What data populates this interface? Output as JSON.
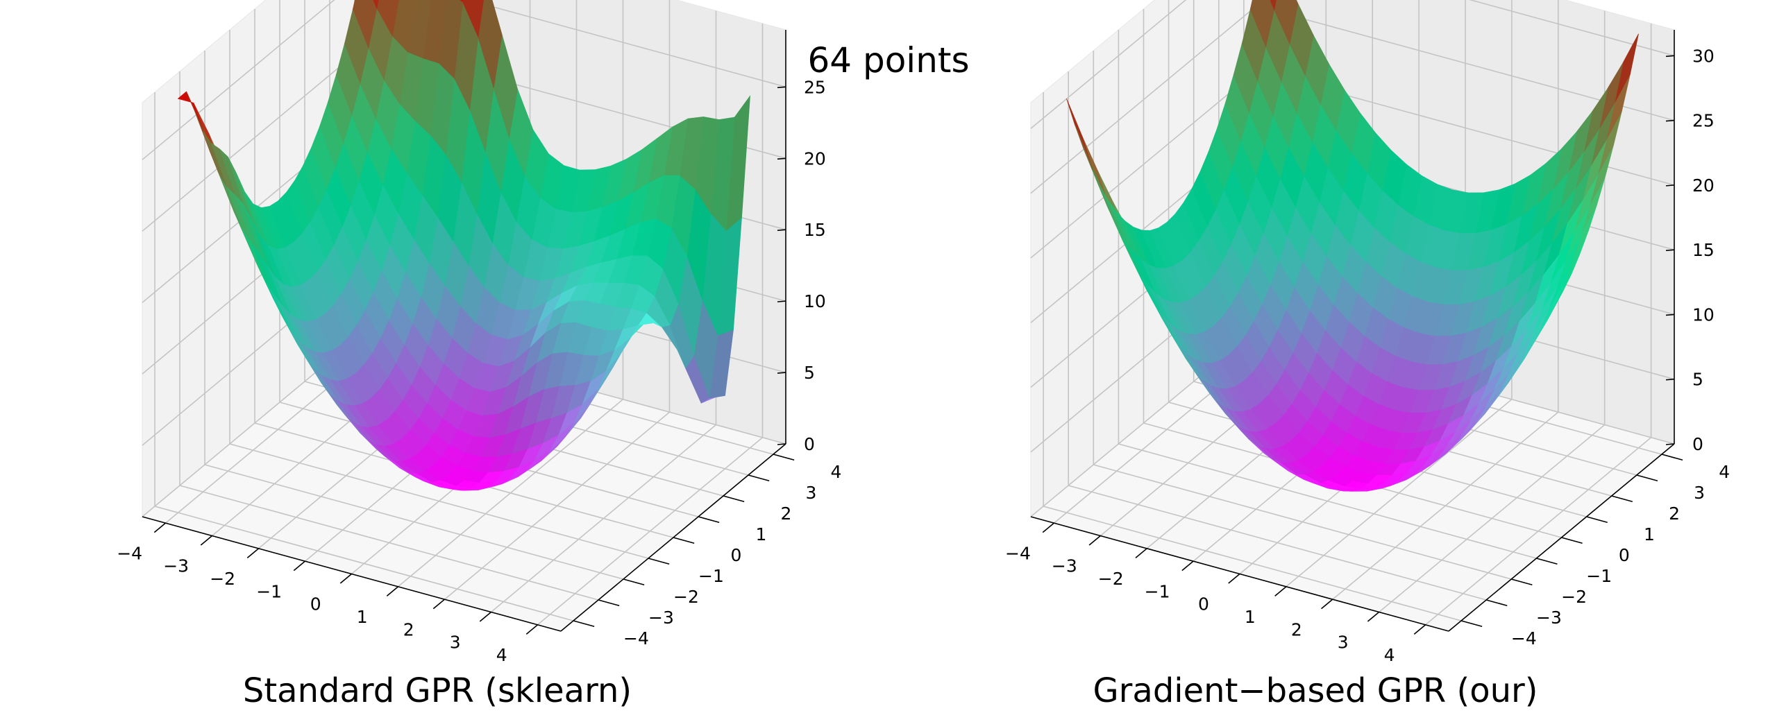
{
  "figure": {
    "suptitle": "64 points"
  },
  "chart_data": [
    {
      "type": "surface3d",
      "title": "Standard GPR (sklearn)",
      "colormap": "rainbow",
      "x": {
        "range": [
          -4.5,
          4.5
        ],
        "ticks": [
          -4,
          -3,
          -2,
          -1,
          0,
          1,
          2,
          3,
          4
        ]
      },
      "y": {
        "range": [
          -4.5,
          4.5
        ],
        "ticks": [
          -4,
          -3,
          -2,
          -1,
          0,
          1,
          2,
          3,
          4
        ]
      },
      "z": {
        "range": [
          0,
          29
        ],
        "ticks": [
          0,
          5,
          10,
          15,
          20,
          25
        ]
      },
      "grid": true,
      "surface": {
        "grid_n": 24,
        "base": "x^2 + y^2",
        "features": [
          {
            "kind": "bump",
            "x": -2.0,
            "y": 4.0,
            "height": 10,
            "width": 1.0
          },
          {
            "kind": "bump",
            "x": -4.0,
            "y": -2.0,
            "height": 2,
            "width": 0.7
          },
          {
            "kind": "dip",
            "x": 4.0,
            "y": 3.0,
            "depth": 20,
            "width": 1.0
          },
          {
            "kind": "dip",
            "x": 0.0,
            "y": -4.5,
            "depth": 8,
            "width": 1.2
          },
          {
            "kind": "ridge",
            "x": 4.5,
            "y": 0.5,
            "height": 6,
            "width": 1.3
          },
          {
            "kind": "bump",
            "x": 1.0,
            "y": 2.0,
            "height": 4,
            "width": 1.0
          }
        ],
        "zmin": 0,
        "zmax": 29
      }
    },
    {
      "type": "surface3d",
      "title": "Gradient−based GPR (our)",
      "colormap": "rainbow",
      "x": {
        "range": [
          -4.5,
          4.5
        ],
        "ticks": [
          -4,
          -3,
          -2,
          -1,
          0,
          1,
          2,
          3,
          4
        ]
      },
      "y": {
        "range": [
          -4.5,
          4.5
        ],
        "ticks": [
          -4,
          -3,
          -2,
          -1,
          0,
          1,
          2,
          3,
          4
        ]
      },
      "z": {
        "range": [
          0,
          32
        ],
        "ticks": [
          0,
          5,
          10,
          15,
          20,
          25,
          30
        ]
      },
      "grid": true,
      "surface": {
        "grid_n": 24,
        "base": "x^2 + y^2",
        "features": [],
        "zmin": 0,
        "zmax": 32
      }
    }
  ]
}
